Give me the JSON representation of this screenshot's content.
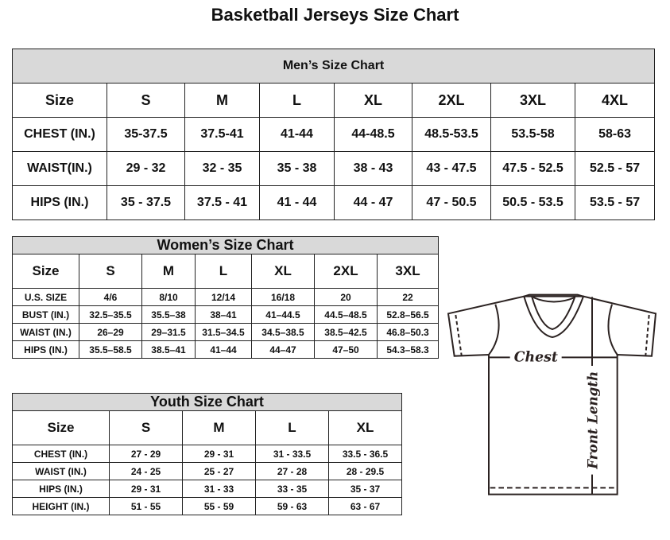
{
  "title": "Basketball Jerseys Size Chart",
  "men": {
    "heading": "Men’s Size Chart",
    "header": [
      "Size",
      "S",
      "M",
      "L",
      "XL",
      "2XL",
      "3XL",
      "4XL"
    ],
    "rows": [
      [
        "CHEST (IN.)",
        "35-37.5",
        "37.5-41",
        "41-44",
        "44-48.5",
        "48.5-53.5",
        "53.5-58",
        "58-63"
      ],
      [
        "WAIST(IN.)",
        "29 - 32",
        "32 - 35",
        "35 - 38",
        "38 - 43",
        "43 - 47.5",
        "47.5 - 52.5",
        "52.5 - 57"
      ],
      [
        "HIPS (IN.)",
        "35 - 37.5",
        "37.5 - 41",
        "41 - 44",
        "44 - 47",
        "47 - 50.5",
        "50.5 - 53.5",
        "53.5 - 57"
      ]
    ]
  },
  "women": {
    "heading": "Women’s Size Chart",
    "header": [
      "Size",
      "S",
      "M",
      "L",
      "XL",
      "2XL",
      "3XL"
    ],
    "rows": [
      [
        "U.S. SIZE",
        "4/6",
        "8/10",
        "12/14",
        "16/18",
        "20",
        "22"
      ],
      [
        "BUST (IN.)",
        "32.5–35.5",
        "35.5–38",
        "38–41",
        "41–44.5",
        "44.5–48.5",
        "52.8–56.5"
      ],
      [
        "WAIST (IN.)",
        "26–29",
        "29–31.5",
        "31.5–34.5",
        "34.5–38.5",
        "38.5–42.5",
        "46.8–50.3"
      ],
      [
        "HIPS (IN.)",
        "35.5–58.5",
        "38.5–41",
        "41–44",
        "44–47",
        "47–50",
        "54.3–58.3"
      ]
    ]
  },
  "youth": {
    "heading": "Youth Size Chart",
    "header": [
      "Size",
      "S",
      "M",
      "L",
      "XL"
    ],
    "rows": [
      [
        "CHEST (IN.)",
        "27 - 29",
        "29 - 31",
        "31 - 33.5",
        "33.5 - 36.5"
      ],
      [
        "WAIST (IN.)",
        "24 - 25",
        "25 - 27",
        "27 - 28",
        "28 - 29.5"
      ],
      [
        "HIPS (IN.)",
        "29 - 31",
        "31 - 33",
        "33 - 35",
        "35 - 37"
      ],
      [
        "HEIGHT (IN.)",
        "51 - 55",
        "55 - 59",
        "59 - 63",
        "63 - 67"
      ]
    ]
  },
  "diagram": {
    "chest_label": "Chest",
    "length_label": "Front Length"
  }
}
